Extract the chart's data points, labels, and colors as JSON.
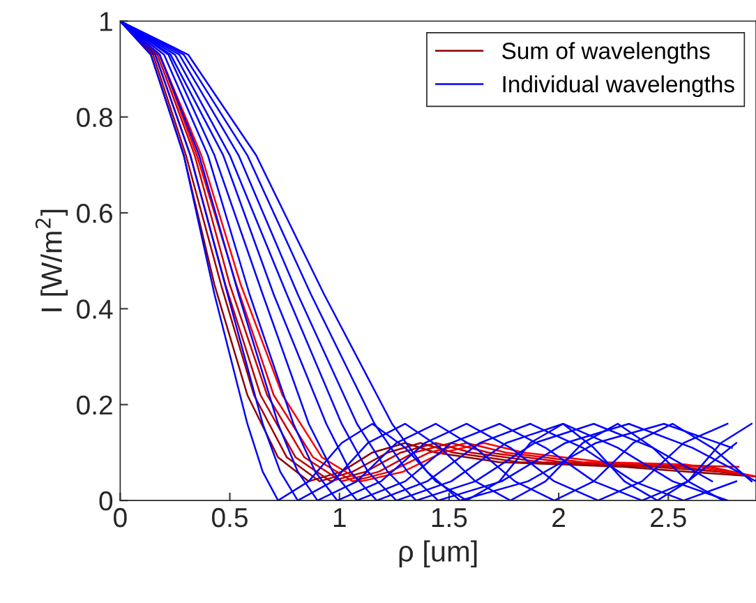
{
  "chart_data": {
    "type": "line",
    "xlabel": "ρ [um]",
    "ylabel": "I [W/m$^{2}$]",
    "xlim": [
      0,
      2.9
    ],
    "xticks": [
      0,
      0.5,
      1,
      1.5,
      2,
      2.5
    ],
    "ylim": [
      0,
      1
    ],
    "yticks": [
      0,
      0.2,
      0.4,
      0.6,
      0.8,
      1
    ],
    "grid": false,
    "legend": "top right",
    "marker": "none",
    "line_style": "solid",
    "series": [
      {
        "name": "Sum of wavelengths",
        "color": "#8b0000",
        "x": [
          0,
          0.14,
          0.29,
          0.43,
          0.58,
          0.72,
          0.86,
          1.01,
          1.15,
          1.3,
          1.44,
          1.73,
          2.02,
          2.3,
          2.59,
          2.9
        ],
        "values": [
          1,
          0.93,
          0.72,
          0.45,
          0.22,
          0.09,
          0.04,
          0.06,
          0.1,
          0.12,
          0.1,
          0.08,
          0.075,
          0.07,
          0.06,
          0.05
        ]
      },
      {
        "color": "#a00000",
        "x": [
          0,
          0.15,
          0.3,
          0.46,
          0.61,
          0.76,
          0.91,
          1.06,
          1.22,
          1.37,
          1.52,
          1.82,
          2.13,
          2.43,
          2.74,
          2.9
        ],
        "values": [
          1,
          0.93,
          0.72,
          0.45,
          0.22,
          0.09,
          0.04,
          0.06,
          0.1,
          0.12,
          0.1,
          0.08,
          0.075,
          0.07,
          0.06,
          0.05
        ]
      },
      {
        "color": "#b80000",
        "x": [
          0,
          0.16,
          0.32,
          0.48,
          0.64,
          0.8,
          0.96,
          1.12,
          1.28,
          1.44,
          1.6,
          1.92,
          2.24,
          2.56,
          2.9
        ],
        "values": [
          1,
          0.93,
          0.72,
          0.45,
          0.22,
          0.09,
          0.04,
          0.06,
          0.1,
          0.12,
          0.1,
          0.08,
          0.075,
          0.07,
          0.05
        ]
      },
      {
        "color": "#cc0000",
        "x": [
          0,
          0.17,
          0.34,
          0.5,
          0.67,
          0.84,
          1.01,
          1.18,
          1.34,
          1.51,
          1.68,
          2.02,
          2.35,
          2.69,
          2.9
        ],
        "values": [
          1,
          0.93,
          0.72,
          0.45,
          0.22,
          0.09,
          0.04,
          0.06,
          0.1,
          0.12,
          0.1,
          0.08,
          0.075,
          0.07,
          0.05
        ]
      },
      {
        "color": "#e60000",
        "x": [
          0,
          0.18,
          0.35,
          0.53,
          0.7,
          0.88,
          1.06,
          1.23,
          1.41,
          1.58,
          1.76,
          2.11,
          2.46,
          2.82
        ],
        "values": [
          1,
          0.93,
          0.72,
          0.45,
          0.22,
          0.09,
          0.04,
          0.06,
          0.1,
          0.12,
          0.1,
          0.08,
          0.075,
          0.07
        ]
      },
      {
        "color": "#ff0000",
        "x": [
          0,
          0.18,
          0.37,
          0.55,
          0.74,
          0.92,
          1.1,
          1.29,
          1.47,
          1.66,
          1.84,
          2.21,
          2.58,
          2.9
        ],
        "values": [
          1,
          0.93,
          0.72,
          0.45,
          0.22,
          0.09,
          0.04,
          0.06,
          0.1,
          0.12,
          0.1,
          0.08,
          0.075,
          0.05
        ]
      },
      {
        "name": "Individual wavelengths",
        "color": "#0000ff",
        "x": [
          0,
          0.14,
          0.29,
          0.43,
          0.58,
          0.65,
          0.72,
          0.86,
          1.01,
          1.15,
          1.3,
          1.44,
          1.58,
          1.73,
          1.87,
          2.02,
          2.16,
          2.3,
          2.45,
          2.59,
          2.74,
          2.88
        ],
        "values": [
          1,
          0.93,
          0.72,
          0.43,
          0.16,
          0.06,
          0,
          0.04,
          0.12,
          0.16,
          0.11,
          0.04,
          0,
          0.04,
          0.12,
          0.16,
          0.11,
          0.04,
          0,
          0.04,
          0.12,
          0.16
        ]
      },
      {
        "color": "#0000ff",
        "x": [
          0,
          0.16,
          0.32,
          0.49,
          0.65,
          0.73,
          0.81,
          0.97,
          1.13,
          1.3,
          1.46,
          1.62,
          1.78,
          1.94,
          2.11,
          2.27,
          2.43,
          2.59,
          2.75
        ],
        "values": [
          1,
          0.93,
          0.72,
          0.43,
          0.16,
          0.06,
          0,
          0.04,
          0.12,
          0.16,
          0.11,
          0.04,
          0,
          0.04,
          0.12,
          0.16,
          0.11,
          0.04,
          0
        ]
      },
      {
        "color": "#0000ff",
        "x": [
          0,
          0.18,
          0.36,
          0.54,
          0.72,
          0.81,
          0.9,
          1.08,
          1.26,
          1.44,
          1.62,
          1.8,
          1.98,
          2.16,
          2.34,
          2.52,
          2.7,
          2.88
        ],
        "values": [
          1,
          0.93,
          0.72,
          0.43,
          0.16,
          0.06,
          0,
          0.04,
          0.12,
          0.16,
          0.11,
          0.04,
          0,
          0.04,
          0.12,
          0.16,
          0.11,
          0.04
        ]
      },
      {
        "color": "#0000ff",
        "x": [
          0,
          0.2,
          0.4,
          0.59,
          0.79,
          0.89,
          0.99,
          1.19,
          1.39,
          1.58,
          1.78,
          1.98,
          2.18,
          2.38,
          2.57,
          2.77
        ],
        "values": [
          1,
          0.93,
          0.72,
          0.43,
          0.16,
          0.06,
          0,
          0.04,
          0.12,
          0.16,
          0.11,
          0.04,
          0,
          0.04,
          0.12,
          0.16
        ]
      },
      {
        "color": "#0000ff",
        "x": [
          0,
          0.22,
          0.43,
          0.65,
          0.86,
          0.97,
          1.08,
          1.3,
          1.51,
          1.73,
          1.94,
          2.16,
          2.38,
          2.59,
          2.81
        ],
        "values": [
          1,
          0.93,
          0.72,
          0.43,
          0.16,
          0.06,
          0,
          0.04,
          0.12,
          0.16,
          0.11,
          0.04,
          0,
          0.04,
          0.12
        ]
      },
      {
        "color": "#0000ff",
        "x": [
          0,
          0.23,
          0.47,
          0.7,
          0.94,
          1.05,
          1.17,
          1.4,
          1.64,
          1.87,
          2.11,
          2.34,
          2.57,
          2.81
        ],
        "values": [
          1,
          0.93,
          0.72,
          0.43,
          0.16,
          0.06,
          0,
          0.04,
          0.12,
          0.16,
          0.11,
          0.04,
          0,
          0.04
        ]
      },
      {
        "color": "#0000ff",
        "x": [
          0,
          0.25,
          0.5,
          0.76,
          1.01,
          1.13,
          1.26,
          1.51,
          1.76,
          2.02,
          2.27,
          2.52,
          2.77
        ],
        "values": [
          1,
          0.93,
          0.72,
          0.43,
          0.16,
          0.06,
          0,
          0.04,
          0.12,
          0.16,
          0.11,
          0.04,
          0
        ]
      },
      {
        "color": "#0000ff",
        "x": [
          0,
          0.27,
          0.54,
          0.81,
          1.08,
          1.22,
          1.35,
          1.62,
          1.89,
          2.16,
          2.43,
          2.7
        ],
        "values": [
          1,
          0.93,
          0.72,
          0.43,
          0.16,
          0.06,
          0,
          0.04,
          0.12,
          0.16,
          0.11,
          0.04
        ]
      },
      {
        "color": "#0000ff",
        "x": [
          0,
          0.29,
          0.58,
          0.87,
          1.16,
          1.31,
          1.45,
          1.74,
          2.03,
          2.32,
          2.61,
          2.9
        ],
        "values": [
          1,
          0.93,
          0.72,
          0.43,
          0.16,
          0.06,
          0,
          0.04,
          0.12,
          0.16,
          0.11,
          0.04
        ]
      },
      {
        "color": "#0000ff",
        "x": [
          0,
          0.31,
          0.62,
          0.93,
          1.24,
          1.4,
          1.55,
          1.86,
          2.17,
          2.48,
          2.79
        ],
        "values": [
          1,
          0.93,
          0.72,
          0.43,
          0.16,
          0.06,
          0,
          0.04,
          0.12,
          0.16,
          0.11
        ]
      }
    ]
  }
}
